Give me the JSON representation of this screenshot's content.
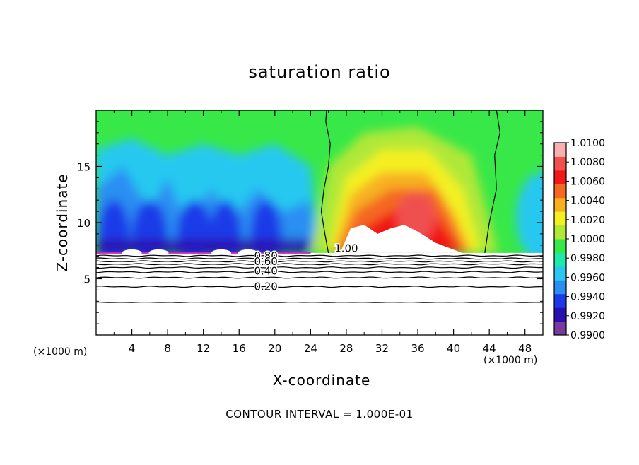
{
  "chart_data": {
    "type": "heatmap",
    "title": "saturation ratio",
    "xlabel": "X-coordinate",
    "ylabel": "Z-coordinate",
    "x_unit_label": "(×1000 m)",
    "footer": "CONTOUR INTERVAL = 1.000E-01",
    "xlim": [
      0,
      50
    ],
    "ylim": [
      0,
      20
    ],
    "x_ticks": [
      4,
      8,
      12,
      16,
      20,
      24,
      28,
      32,
      36,
      40,
      44,
      48
    ],
    "y_ticks": [
      5,
      10,
      15
    ],
    "colorbar": {
      "min": 0.99,
      "max": 1.01,
      "labels": [
        "1.0100",
        "1.0080",
        "1.0060",
        "1.0040",
        "1.0020",
        "1.0000",
        "0.9980",
        "0.9960",
        "0.9940",
        "0.9920",
        "0.9900"
      ],
      "colors": [
        "#7a3aa0",
        "#2a10b0",
        "#1a3ae8",
        "#2a8ef2",
        "#28c8f0",
        "#20e8a8",
        "#38e848",
        "#b0e838",
        "#f4f020",
        "#f8b020",
        "#f46820",
        "#f01818",
        "#f05050",
        "#f8b0b0"
      ]
    },
    "contour_labels": [
      "1.00",
      "0.80",
      "0.60",
      "0.40",
      "0.20"
    ],
    "saturated_contour_x": [
      25,
      44.5
    ],
    "cloud_base_z": 7.3
  }
}
